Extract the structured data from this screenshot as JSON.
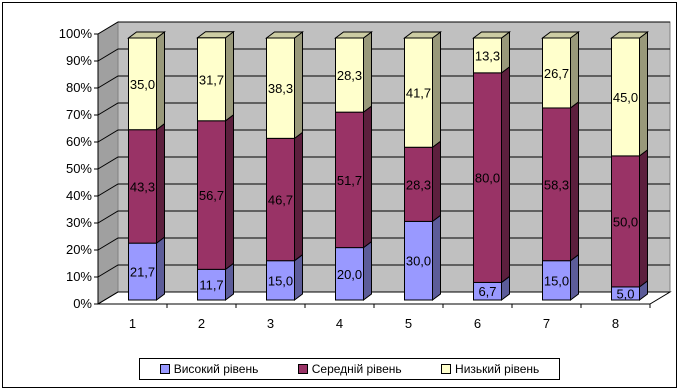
{
  "chart_data": {
    "type": "bar",
    "stacked": true,
    "percent_stacked": true,
    "three_d": true,
    "categories": [
      "1",
      "2",
      "3",
      "4",
      "5",
      "6",
      "7",
      "8"
    ],
    "series": [
      {
        "name": "Високий рівень",
        "color": "#9999ff",
        "values": [
          21.7,
          11.7,
          15.0,
          20.0,
          30.0,
          6.7,
          15.0,
          5.0
        ],
        "labels": [
          "21,7",
          "11,7",
          "15,0",
          "20,0",
          "30,0",
          "6,7",
          "15,0",
          "5,0"
        ]
      },
      {
        "name": "Середній рівень",
        "color": "#993366",
        "values": [
          43.3,
          56.7,
          46.7,
          51.7,
          28.3,
          80.0,
          58.3,
          50.0
        ],
        "labels": [
          "43,3",
          "56,7",
          "46,7",
          "51,7",
          "28,3",
          "80,0",
          "58,3",
          "50,0"
        ]
      },
      {
        "name": "Низький рівень",
        "color": "#ffffcc",
        "values": [
          35.0,
          31.7,
          38.3,
          28.3,
          41.7,
          13.3,
          26.7,
          45.0
        ],
        "labels": [
          "35,0",
          "31,7",
          "38,3",
          "28,3",
          "41,7",
          "13,3",
          "26,7",
          "45,0"
        ]
      }
    ],
    "y_ticks": [
      "0%",
      "10%",
      "20%",
      "30%",
      "40%",
      "50%",
      "60%",
      "70%",
      "80%",
      "90%",
      "100%"
    ],
    "ylim": [
      0,
      100
    ],
    "grid": true,
    "wall_color": "#c0c0c0",
    "legend_position": "bottom"
  }
}
